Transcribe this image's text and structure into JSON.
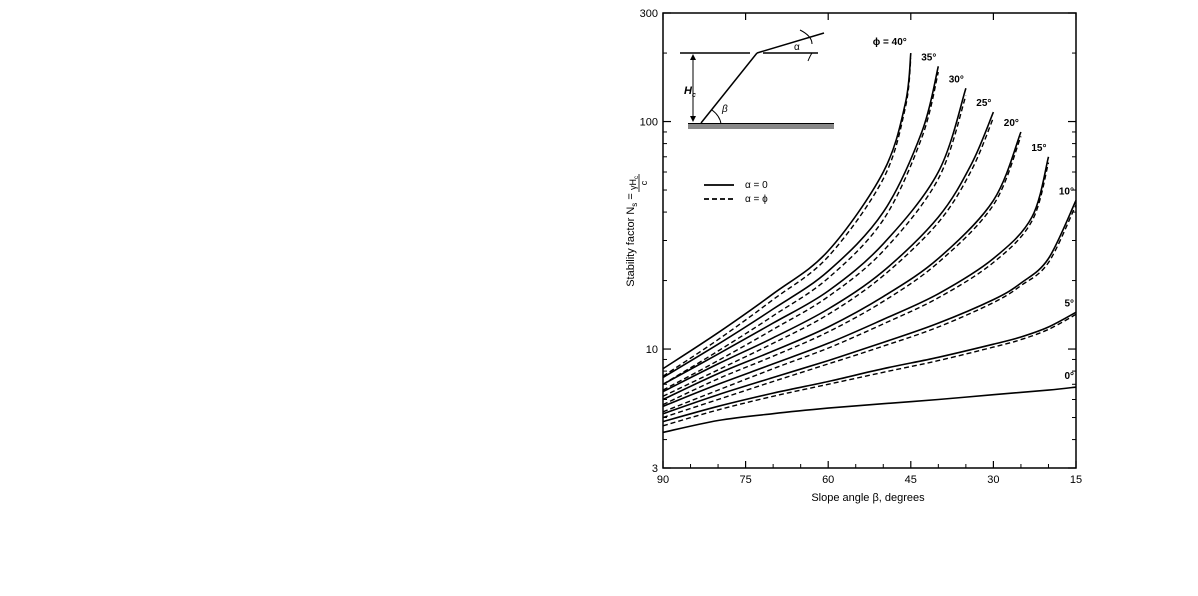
{
  "chart_data": {
    "type": "line",
    "xlabel": "Slope angle β, degrees",
    "ylabel": "Stability factor N",
    "ylabel_sub": "s",
    "ylabel_eq": "=",
    "ylabel_frac_num": "γH",
    "ylabel_frac_num_sub": "c",
    "ylabel_frac_den": "c",
    "x_ticks": [
      "90",
      "75",
      "60",
      "45",
      "30",
      "15"
    ],
    "y_ticks": [
      "300",
      "100",
      "10",
      "3"
    ],
    "xlim": [
      90,
      15
    ],
    "ylim": [
      3,
      300
    ],
    "y_scale": "log",
    "x_reversed": true,
    "grid": false,
    "legend": {
      "placement": "upper-left",
      "solid_label": "α = 0",
      "dashed_label": "α = ϕ"
    },
    "inset_labels": {
      "alpha": "α",
      "hc": "H",
      "hc_sub": "c",
      "beta": "β"
    },
    "series": [
      {
        "name": "ϕ = 40°",
        "solid": [
          [
            90,
            8.2
          ],
          [
            80,
            11.8
          ],
          [
            70,
            17.5
          ],
          [
            60,
            27
          ],
          [
            50,
            60
          ],
          [
            46,
            120
          ],
          [
            45,
            200
          ]
        ],
        "dashed": [
          [
            90,
            7.6
          ],
          [
            80,
            11
          ],
          [
            70,
            16.5
          ],
          [
            60,
            25.5
          ],
          [
            50,
            56
          ],
          [
            46,
            115
          ],
          [
            45,
            190
          ]
        ]
      },
      {
        "name": "35°",
        "solid": [
          [
            90,
            7.5
          ],
          [
            80,
            10.5
          ],
          [
            70,
            15
          ],
          [
            60,
            22
          ],
          [
            50,
            40
          ],
          [
            43,
            90
          ],
          [
            40,
            175
          ]
        ],
        "dashed": [
          [
            90,
            7
          ],
          [
            80,
            9.8
          ],
          [
            70,
            14
          ],
          [
            60,
            20.5
          ],
          [
            50,
            37
          ],
          [
            43,
            85
          ],
          [
            40,
            165
          ]
        ]
      },
      {
        "name": "30°",
        "solid": [
          [
            90,
            7
          ],
          [
            80,
            9.5
          ],
          [
            70,
            13
          ],
          [
            60,
            18
          ],
          [
            50,
            29
          ],
          [
            40,
            60
          ],
          [
            35,
            140
          ]
        ],
        "dashed": [
          [
            90,
            6.6
          ],
          [
            80,
            8.9
          ],
          [
            70,
            12.2
          ],
          [
            60,
            17
          ],
          [
            50,
            27
          ],
          [
            40,
            56
          ],
          [
            35,
            130
          ]
        ]
      },
      {
        "name": "25°",
        "solid": [
          [
            90,
            6.5
          ],
          [
            80,
            8.6
          ],
          [
            70,
            11.2
          ],
          [
            60,
            15
          ],
          [
            50,
            22
          ],
          [
            40,
            38
          ],
          [
            34,
            65
          ],
          [
            30,
            110
          ]
        ],
        "dashed": [
          [
            90,
            6.2
          ],
          [
            80,
            8.1
          ],
          [
            70,
            10.6
          ],
          [
            60,
            14.2
          ],
          [
            50,
            21
          ],
          [
            40,
            36
          ],
          [
            34,
            61
          ],
          [
            30,
            104
          ]
        ]
      },
      {
        "name": "20°",
        "solid": [
          [
            90,
            6
          ],
          [
            80,
            7.8
          ],
          [
            70,
            9.8
          ],
          [
            60,
            12.5
          ],
          [
            50,
            17
          ],
          [
            40,
            25
          ],
          [
            30,
            45
          ],
          [
            25,
            90
          ]
        ],
        "dashed": [
          [
            90,
            5.7
          ],
          [
            80,
            7.4
          ],
          [
            70,
            9.3
          ],
          [
            60,
            11.9
          ],
          [
            50,
            16.2
          ],
          [
            40,
            24
          ],
          [
            30,
            43
          ],
          [
            25,
            86
          ]
        ]
      },
      {
        "name": "15°",
        "solid": [
          [
            90,
            5.6
          ],
          [
            80,
            7
          ],
          [
            70,
            8.6
          ],
          [
            60,
            10.6
          ],
          [
            50,
            13.5
          ],
          [
            40,
            17.5
          ],
          [
            30,
            25
          ],
          [
            23,
            38
          ],
          [
            20,
            70
          ]
        ],
        "dashed": [
          [
            90,
            5.3
          ],
          [
            80,
            6.6
          ],
          [
            70,
            8.2
          ],
          [
            60,
            10.1
          ],
          [
            50,
            12.9
          ],
          [
            40,
            16.8
          ],
          [
            30,
            24
          ],
          [
            23,
            36.5
          ],
          [
            20,
            66
          ]
        ]
      },
      {
        "name": "10°",
        "solid": [
          [
            90,
            5.2
          ],
          [
            80,
            6.3
          ],
          [
            70,
            7.5
          ],
          [
            60,
            8.9
          ],
          [
            50,
            10.7
          ],
          [
            40,
            13
          ],
          [
            30,
            16.5
          ],
          [
            25,
            19.5
          ],
          [
            20,
            25
          ],
          [
            15,
            45
          ]
        ],
        "dashed": [
          [
            90,
            5
          ],
          [
            80,
            6
          ],
          [
            70,
            7.2
          ],
          [
            60,
            8.6
          ],
          [
            50,
            10.3
          ],
          [
            40,
            12.5
          ],
          [
            30,
            16
          ],
          [
            25,
            19
          ],
          [
            20,
            24
          ],
          [
            15,
            43
          ]
        ]
      },
      {
        "name": "5°",
        "solid": [
          [
            90,
            4.8
          ],
          [
            80,
            5.6
          ],
          [
            70,
            6.4
          ],
          [
            60,
            7.2
          ],
          [
            50,
            8.2
          ],
          [
            40,
            9.2
          ],
          [
            30,
            10.5
          ],
          [
            25,
            11.3
          ],
          [
            20,
            12.5
          ],
          [
            15,
            14.5
          ]
        ],
        "dashed": [
          [
            90,
            4.6
          ],
          [
            80,
            5.4
          ],
          [
            70,
            6.2
          ],
          [
            60,
            7
          ],
          [
            50,
            7.9
          ],
          [
            40,
            8.9
          ],
          [
            30,
            10.2
          ],
          [
            25,
            11
          ],
          [
            20,
            12.2
          ],
          [
            15,
            14.2
          ]
        ]
      },
      {
        "name": "0°",
        "solid": [
          [
            90,
            4.3
          ],
          [
            80,
            4.85
          ],
          [
            70,
            5.2
          ],
          [
            60,
            5.5
          ],
          [
            50,
            5.75
          ],
          [
            40,
            6.0
          ],
          [
            30,
            6.3
          ],
          [
            20,
            6.6
          ],
          [
            15,
            6.8
          ]
        ],
        "dashed": []
      }
    ]
  }
}
